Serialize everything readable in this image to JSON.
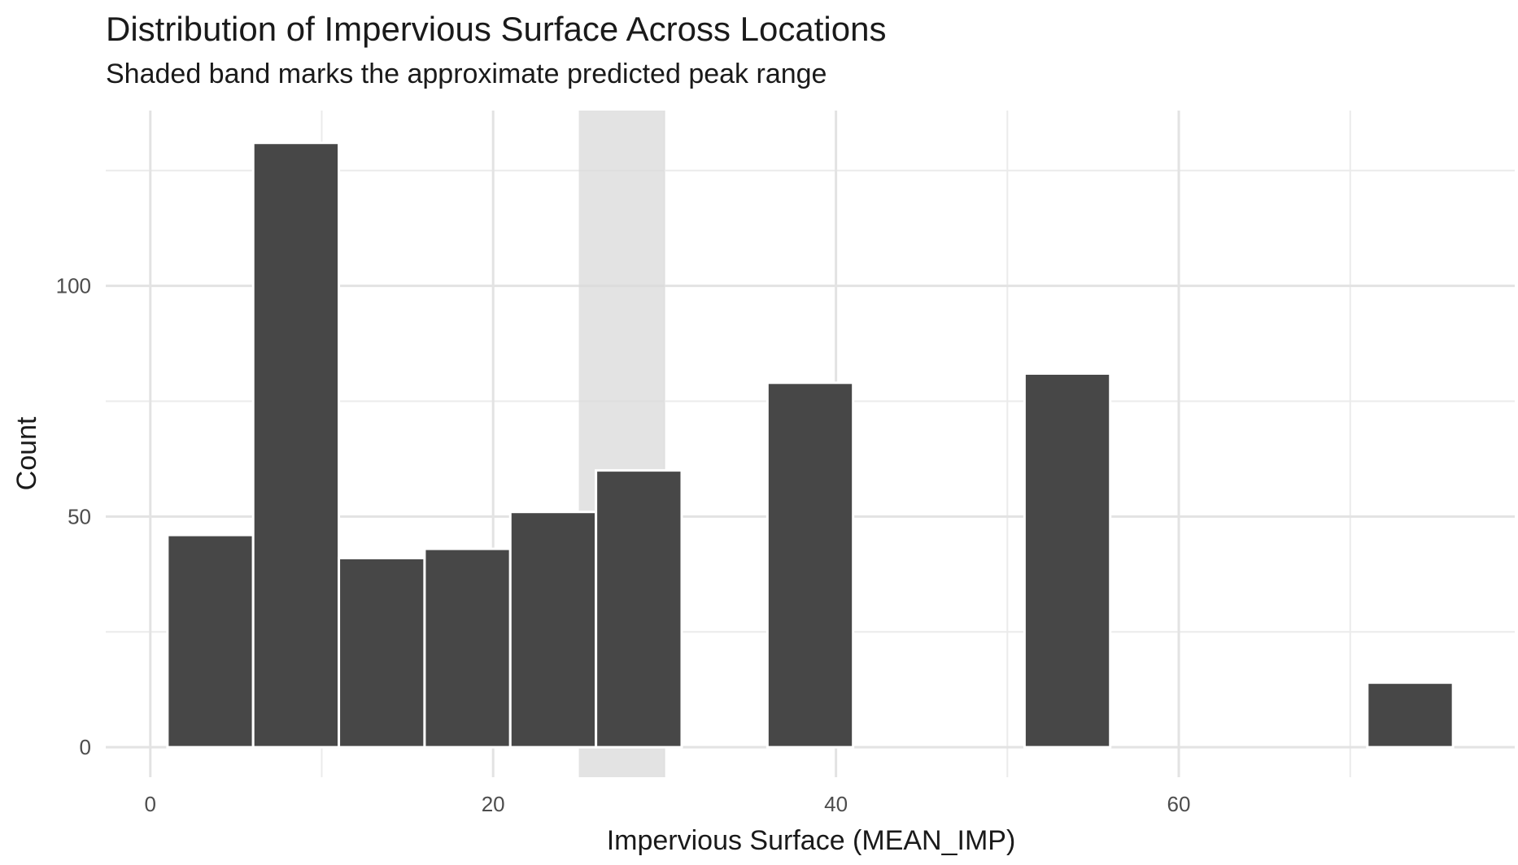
{
  "chart_data": {
    "type": "bar",
    "title": "Distribution of Impervious Surface Across Locations",
    "subtitle": "Shaded band marks the approximate predicted peak range",
    "xlabel": "Impervious Surface (MEAN_IMP)",
    "ylabel": "Count",
    "xlim": [
      -2.6,
      79.6
    ],
    "ylim": [
      -6.5,
      138
    ],
    "x_ticks": [
      "0",
      "20",
      "40",
      "60"
    ],
    "x_tick_values": [
      0,
      20,
      40,
      60
    ],
    "y_ticks": [
      "0",
      "50",
      "100"
    ],
    "y_tick_values": [
      0,
      50,
      100
    ],
    "bin_width": 5,
    "bins": [
      {
        "x0": 1,
        "x1": 6,
        "count": 46
      },
      {
        "x0": 6,
        "x1": 11,
        "count": 131
      },
      {
        "x0": 11,
        "x1": 16,
        "count": 41
      },
      {
        "x0": 16,
        "x1": 21,
        "count": 43
      },
      {
        "x0": 21,
        "x1": 26,
        "count": 51
      },
      {
        "x0": 26,
        "x1": 31,
        "count": 60
      },
      {
        "x0": 31,
        "x1": 36,
        "count": 0
      },
      {
        "x0": 36,
        "x1": 41,
        "count": 79
      },
      {
        "x0": 41,
        "x1": 46,
        "count": 0
      },
      {
        "x0": 46,
        "x1": 51,
        "count": 0
      },
      {
        "x0": 51,
        "x1": 56,
        "count": 81
      },
      {
        "x0": 56,
        "x1": 61,
        "count": 0
      },
      {
        "x0": 61,
        "x1": 66,
        "count": 0
      },
      {
        "x0": 66,
        "x1": 71,
        "count": 0
      },
      {
        "x0": 71,
        "x1": 76,
        "count": 14
      }
    ],
    "shaded_band": {
      "x0": 25,
      "x1": 30
    },
    "grid": true,
    "colors": {
      "bar": "#474747",
      "bar_edge": "#ffffff",
      "band": "#d9d9d9",
      "grid": "#ebebeb"
    }
  }
}
